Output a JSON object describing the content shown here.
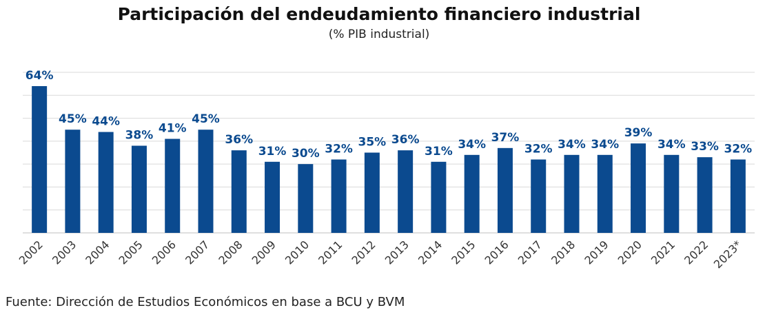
{
  "chart_data": {
    "type": "bar",
    "title": "Participación del endeudamiento financiero industrial",
    "subtitle": "(% PIB industrial)",
    "categories": [
      "2002",
      "2003",
      "2004",
      "2005",
      "2006",
      "2007",
      "2008",
      "2009",
      "2010",
      "2011",
      "2012",
      "2013",
      "2014",
      "2015",
      "2016",
      "2017",
      "2018",
      "2019",
      "2020",
      "2021",
      "2022",
      "2023*"
    ],
    "values": [
      64,
      45,
      44,
      38,
      41,
      45,
      36,
      31,
      30,
      32,
      35,
      36,
      31,
      34,
      37,
      32,
      34,
      34,
      39,
      34,
      33,
      32
    ],
    "data_labels": [
      "64%",
      "45%",
      "44%",
      "38%",
      "41%",
      "45%",
      "36%",
      "31%",
      "30%",
      "32%",
      "35%",
      "36%",
      "31%",
      "34%",
      "37%",
      "32%",
      "34%",
      "34%",
      "39%",
      "34%",
      "33%",
      "32%"
    ],
    "ylim": [
      0,
      70
    ],
    "grid": true,
    "bar_color": "#0B4A8F",
    "label_color": "#0B4A8F"
  },
  "source": "Fuente: Dirección de Estudios Económicos en base a BCU y BVM"
}
